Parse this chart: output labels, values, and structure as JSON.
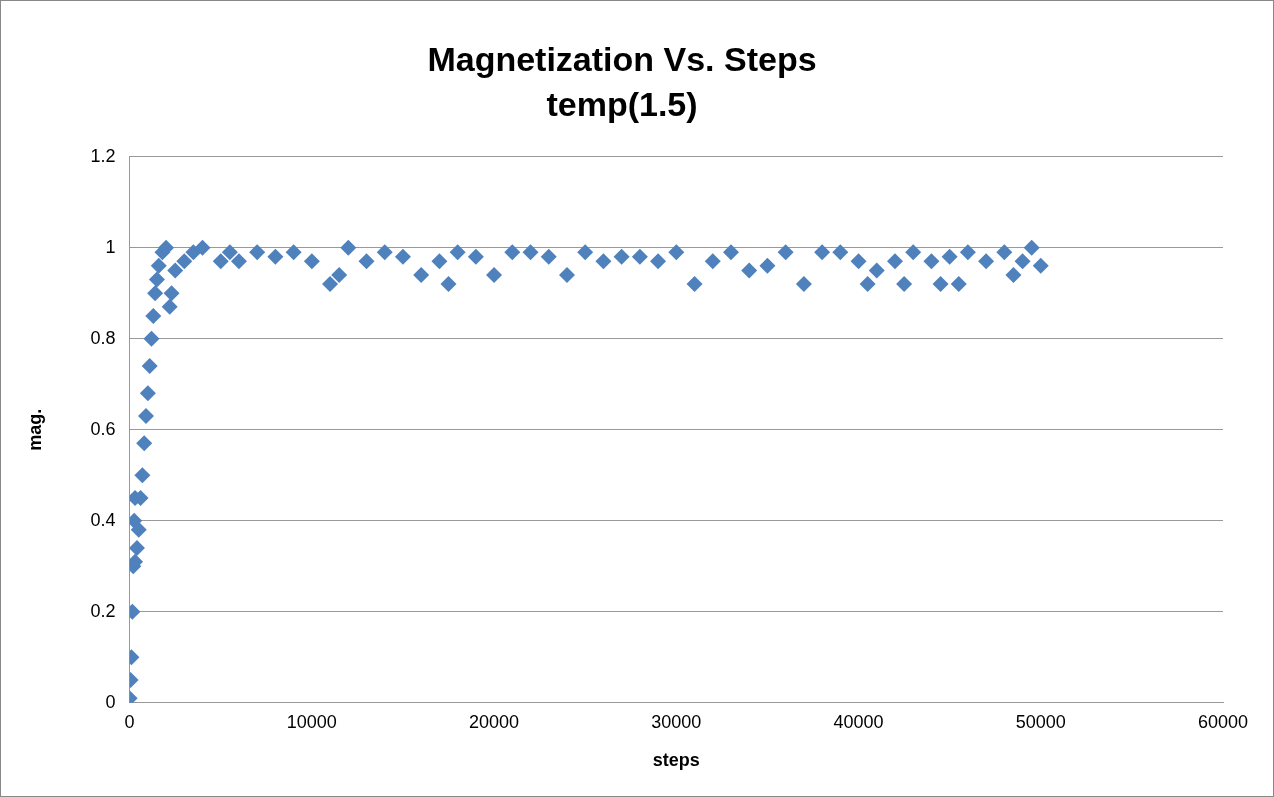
{
  "chart_data": {
    "type": "scatter",
    "title": "Magnetization Vs. Steps",
    "subtitle": "temp(1.5)",
    "xlabel": "steps",
    "ylabel": "mag.",
    "x": [
      0,
      50,
      100,
      150,
      200,
      250,
      300,
      300,
      400,
      500,
      600,
      700,
      800,
      900,
      1000,
      1100,
      1200,
      1300,
      1400,
      1500,
      1600,
      1800,
      2000,
      2200,
      2300,
      2500,
      3000,
      3500,
      4000,
      5000,
      5500,
      6000,
      7000,
      8000,
      9000,
      10000,
      11000,
      11500,
      12000,
      13000,
      14000,
      15000,
      16000,
      17000,
      17500,
      18000,
      19000,
      20000,
      21000,
      22000,
      23000,
      24000,
      25000,
      26000,
      27000,
      28000,
      29000,
      30000,
      31000,
      32000,
      33000,
      34000,
      35000,
      36000,
      37000,
      38000,
      39000,
      40000,
      40500,
      41000,
      42000,
      42500,
      43000,
      44000,
      44500,
      45000,
      45500,
      46000,
      47000,
      48000,
      48500,
      49000,
      49500,
      50000
    ],
    "series": [
      {
        "color": "#4f81bd",
        "values": [
          0.01,
          0.05,
          0.1,
          0.2,
          0.3,
          0.4,
          0.45,
          0.31,
          0.34,
          0.38,
          0.45,
          0.5,
          0.57,
          0.63,
          0.68,
          0.74,
          0.8,
          0.85,
          0.9,
          0.93,
          0.96,
          0.99,
          1.0,
          0.87,
          0.9,
          0.95,
          0.97,
          0.99,
          1.0,
          0.97,
          0.99,
          0.97,
          0.99,
          0.98,
          0.99,
          0.97,
          0.92,
          0.94,
          1.0,
          0.97,
          0.99,
          0.98,
          0.94,
          0.97,
          0.92,
          0.99,
          0.98,
          0.94,
          0.99,
          0.99,
          0.98,
          0.94,
          0.99,
          0.97,
          0.98,
          0.98,
          0.97,
          0.99,
          0.92,
          0.97,
          0.99,
          0.95,
          0.96,
          0.99,
          0.92,
          0.99,
          0.99,
          0.97,
          0.92,
          0.95,
          0.97,
          0.92,
          0.99,
          0.97,
          0.92,
          0.98,
          0.92,
          0.99,
          0.97,
          0.99,
          0.94,
          0.97,
          1.0,
          0.96
        ]
      }
    ],
    "xlim": [
      0,
      60000
    ],
    "xticks": [
      0,
      10000,
      20000,
      30000,
      40000,
      50000,
      60000
    ],
    "ylim": [
      0,
      1.2
    ],
    "yticks": [
      0,
      0.2,
      0.4,
      0.6,
      0.8,
      1,
      1.2
    ],
    "grid": "y",
    "legend": false,
    "marker": "diamond"
  }
}
